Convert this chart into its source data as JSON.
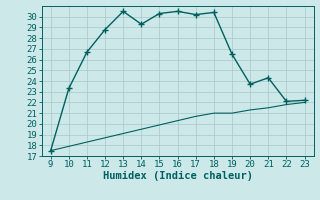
{
  "x": [
    9,
    10,
    11,
    12,
    13,
    14,
    15,
    16,
    17,
    18,
    19,
    20,
    21,
    22,
    23
  ],
  "y_main": [
    17.5,
    23.3,
    26.7,
    28.8,
    30.5,
    29.3,
    30.3,
    30.5,
    30.2,
    30.4,
    26.5,
    23.7,
    24.3,
    22.1,
    22.2
  ],
  "y_linear": [
    17.5,
    17.9,
    18.3,
    18.7,
    19.1,
    19.5,
    19.9,
    20.3,
    20.7,
    21.0,
    21.0,
    21.3,
    21.5,
    21.8,
    22.0
  ],
  "line_color": "#006060",
  "bg_color": "#cce8e8",
  "grid_color": "#a8c8c8",
  "xlabel": "Humidex (Indice chaleur)",
  "xlabel_fontsize": 7.5,
  "xlim": [
    8.5,
    23.5
  ],
  "ylim": [
    17,
    31
  ],
  "xticks": [
    9,
    10,
    11,
    12,
    13,
    14,
    15,
    16,
    17,
    18,
    19,
    20,
    21,
    22,
    23
  ],
  "yticks": [
    17,
    18,
    19,
    20,
    21,
    22,
    23,
    24,
    25,
    26,
    27,
    28,
    29,
    30
  ],
  "tick_fontsize": 6.5,
  "marker": "+",
  "markersize": 4,
  "linewidth": 1.0,
  "linear_linewidth": 0.8
}
